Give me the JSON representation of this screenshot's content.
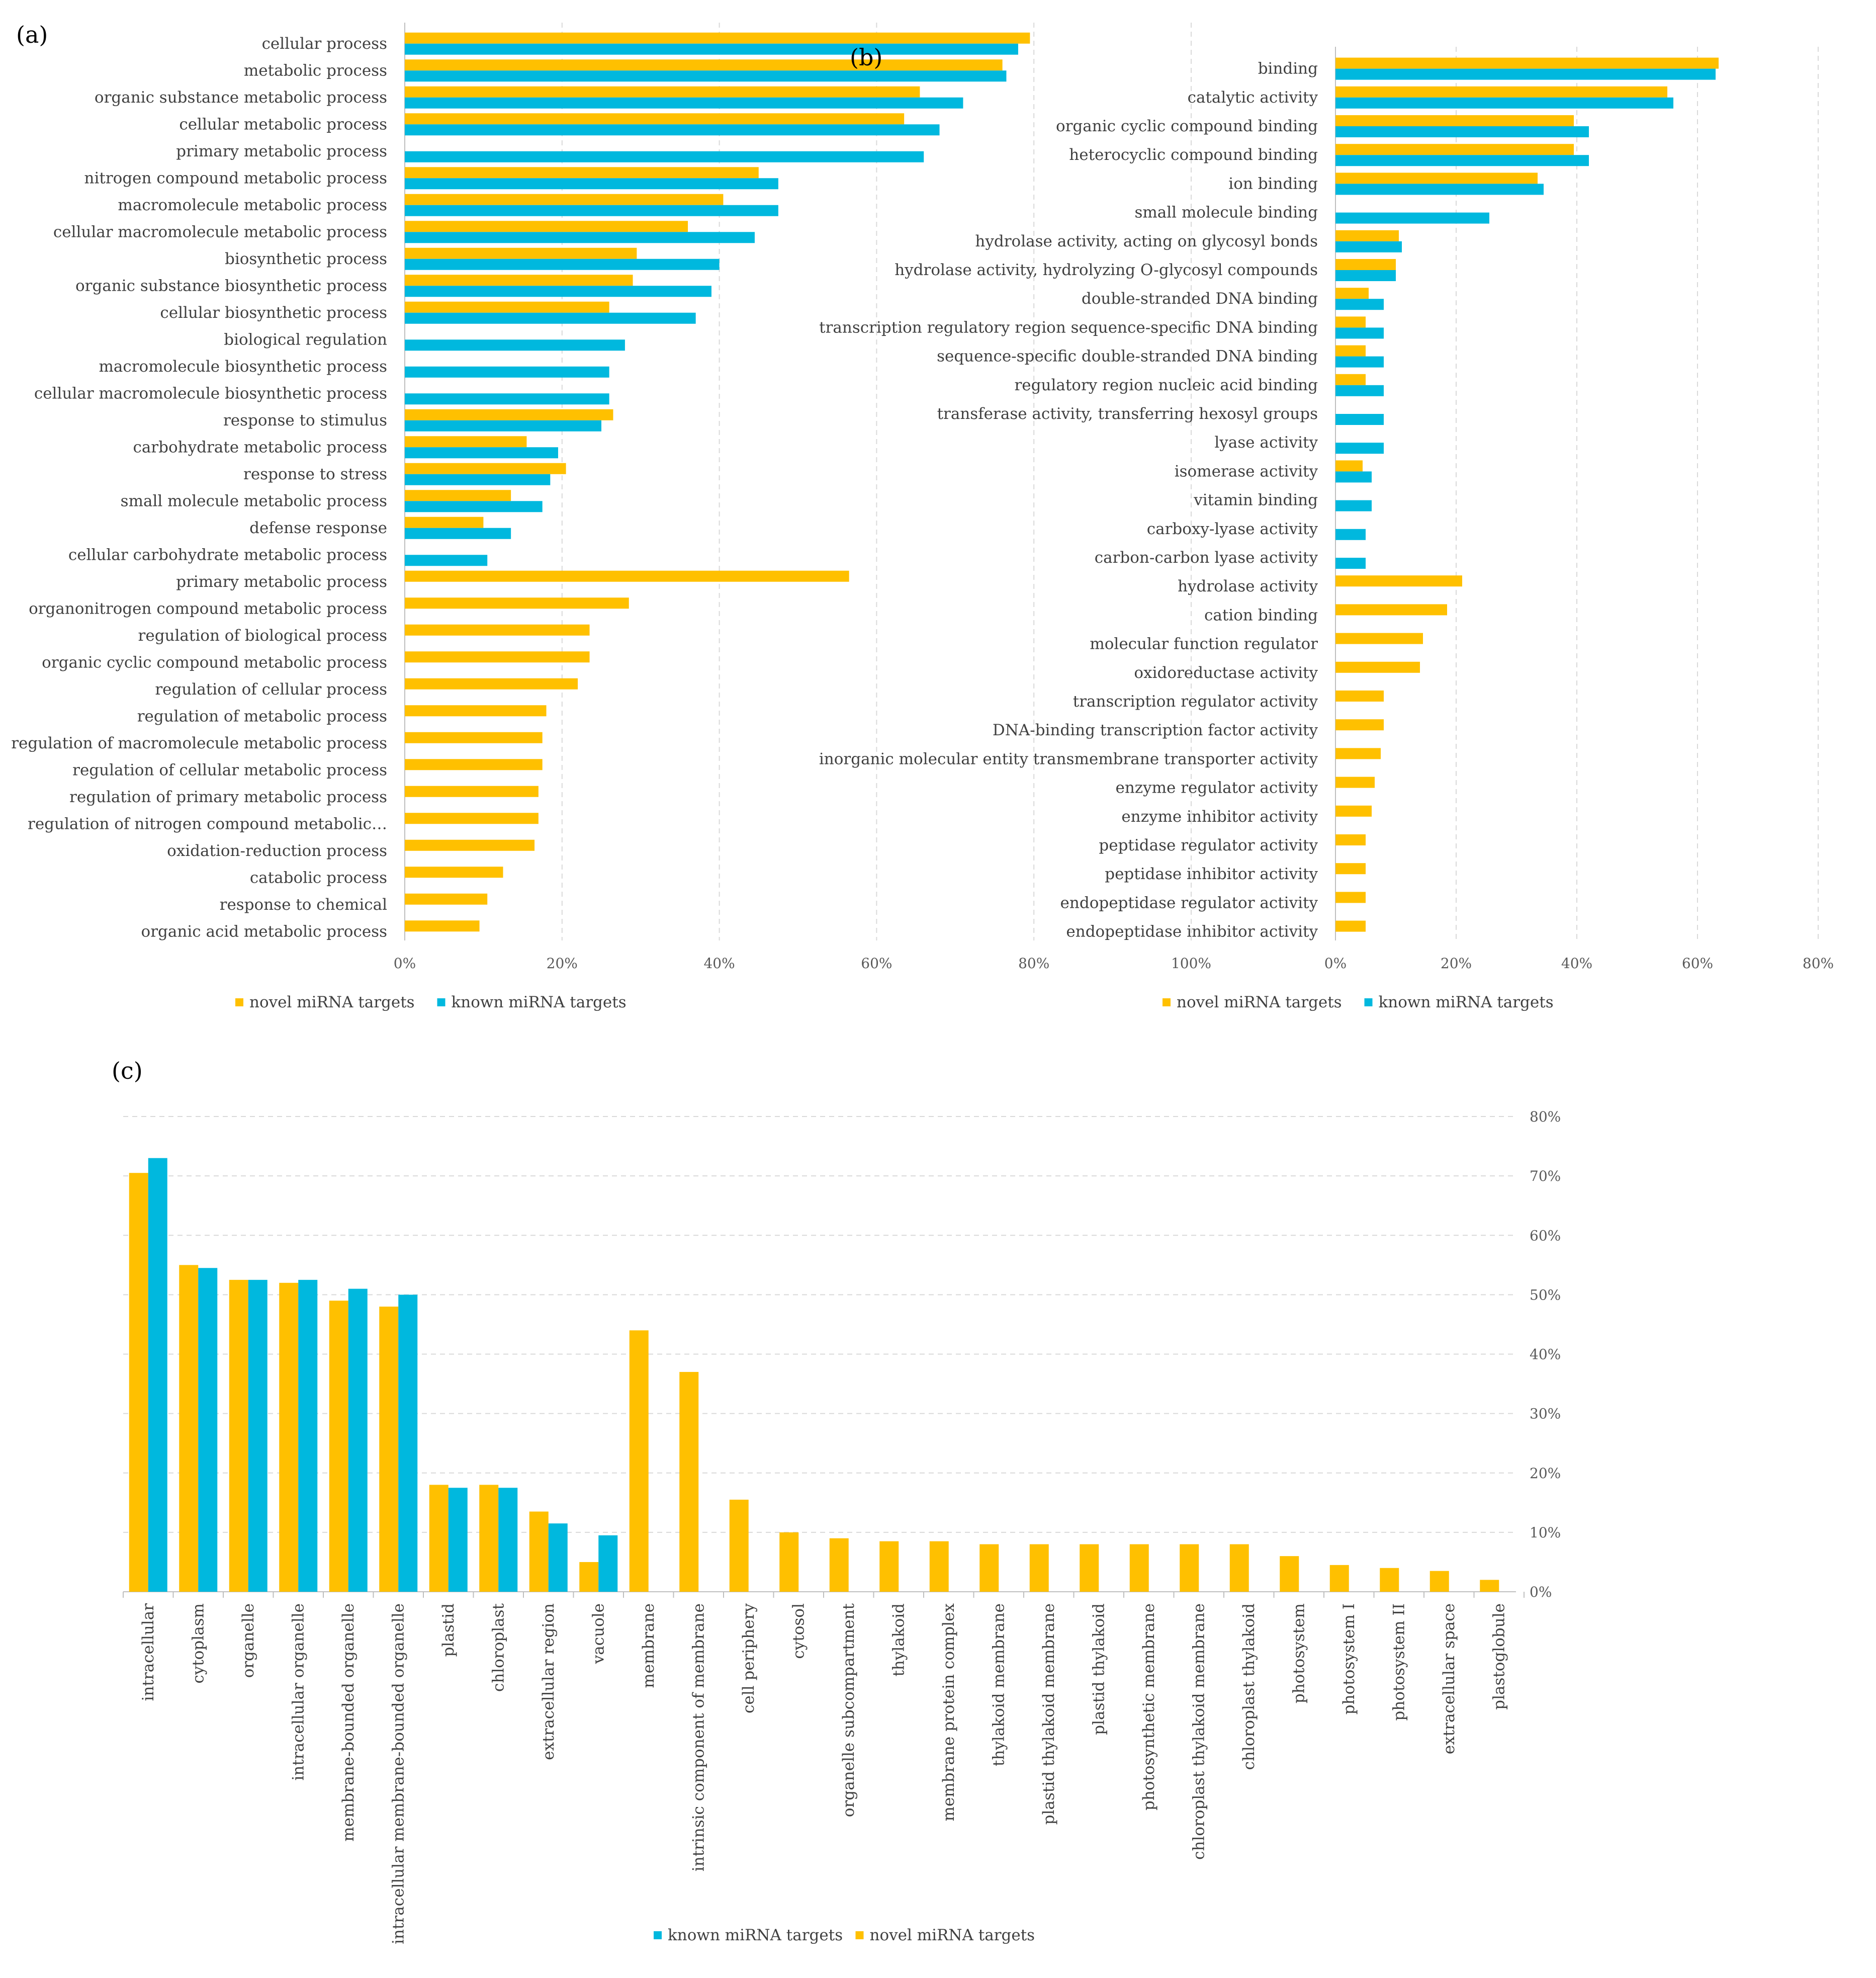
{
  "colors": {
    "novel": "#FFC000",
    "known": "#00B8DE",
    "grid": "#D9D9D9",
    "axis": "#BFBFBF"
  },
  "chart_data": [
    {
      "panel_label": "(a)",
      "type": "bar",
      "orientation": "horizontal",
      "xlim": [
        0,
        100
      ],
      "ticks": [
        "0%",
        "20%",
        "40%",
        "60%",
        "80%",
        "100%"
      ],
      "legend": [
        {
          "key": "novel",
          "label": "novel miRNA targets"
        },
        {
          "key": "known",
          "label": "known miRNA targets"
        }
      ],
      "categories": [
        "cellular process",
        "metabolic process",
        "organic substance metabolic process",
        "cellular metabolic process",
        "primary metabolic process",
        "nitrogen compound metabolic process",
        "macromolecule metabolic process",
        "cellular macromolecule metabolic process",
        "biosynthetic process",
        "organic substance biosynthetic process",
        "cellular biosynthetic process",
        "biological regulation",
        "macromolecule biosynthetic process",
        "cellular macromolecule biosynthetic process",
        "response to stimulus",
        "carbohydrate metabolic process",
        "response to stress",
        "small molecule metabolic process",
        "defense response",
        "cellular carbohydrate metabolic process",
        "primary metabolic process",
        "organonitrogen compound metabolic process",
        "regulation of biological process",
        "organic cyclic compound metabolic process",
        "regulation of cellular process",
        "regulation of metabolic process",
        "regulation of macromolecule metabolic process",
        "regulation of cellular metabolic process",
        "regulation of primary metabolic process",
        "regulation of nitrogen compound metabolic…",
        "oxidation-reduction process",
        "catabolic process",
        "response to chemical",
        "organic acid metabolic process"
      ],
      "series": [
        {
          "key": "novel",
          "values": [
            79.5,
            76,
            65.5,
            63.5,
            null,
            45,
            40.5,
            36,
            29.5,
            29,
            26,
            null,
            null,
            null,
            26.5,
            15.5,
            20.5,
            13.5,
            10,
            null,
            56.5,
            28.5,
            23.5,
            23.5,
            22,
            18,
            17.5,
            17.5,
            17,
            17,
            16.5,
            12.5,
            10.5,
            9.5
          ]
        },
        {
          "key": "known",
          "values": [
            78,
            76.5,
            71,
            68,
            66,
            47.5,
            47.5,
            44.5,
            40,
            39,
            37,
            28,
            26,
            26,
            25,
            19.5,
            18.5,
            17.5,
            13.5,
            10.5,
            null,
            null,
            null,
            null,
            null,
            null,
            null,
            null,
            null,
            null,
            null,
            null,
            null,
            null
          ]
        }
      ]
    },
    {
      "panel_label": "(b)",
      "type": "bar",
      "orientation": "horizontal",
      "xlim": [
        0,
        80
      ],
      "ticks": [
        "0%",
        "20%",
        "40%",
        "60%",
        "80%"
      ],
      "legend": [
        {
          "key": "novel",
          "label": "novel miRNA targets"
        },
        {
          "key": "known",
          "label": "known miRNA targets"
        }
      ],
      "categories": [
        "binding",
        "catalytic activity",
        "organic cyclic compound binding",
        "heterocyclic compound binding",
        "ion binding",
        "small molecule binding",
        "hydrolase activity, acting on glycosyl bonds",
        "hydrolase activity, hydrolyzing O-glycosyl compounds",
        "double-stranded DNA binding",
        "transcription regulatory region sequence-specific DNA binding",
        "sequence-specific double-stranded DNA binding",
        "regulatory region nucleic acid binding",
        "transferase activity, transferring hexosyl groups",
        "lyase activity",
        "isomerase activity",
        "vitamin binding",
        "carboxy-lyase activity",
        "carbon-carbon lyase activity",
        "hydrolase activity",
        "cation binding",
        "molecular function regulator",
        "oxidoreductase activity",
        "transcription regulator activity",
        "DNA-binding transcription factor activity",
        "inorganic molecular entity transmembrane transporter activity",
        "enzyme regulator activity",
        "enzyme inhibitor activity",
        "peptidase regulator activity",
        "peptidase inhibitor activity",
        "endopeptidase regulator activity",
        "endopeptidase inhibitor activity"
      ],
      "series": [
        {
          "key": "novel",
          "values": [
            63.5,
            55,
            39.5,
            39.5,
            33.5,
            null,
            10.5,
            10,
            5.5,
            5,
            5,
            5,
            null,
            null,
            4.5,
            null,
            null,
            null,
            21,
            18.5,
            14.5,
            14,
            8,
            8,
            7.5,
            6.5,
            6,
            5,
            5,
            5,
            5
          ]
        },
        {
          "key": "known",
          "values": [
            63,
            56,
            42,
            42,
            34.5,
            25.5,
            11,
            10,
            8,
            8,
            8,
            8,
            8,
            8,
            6,
            6,
            5,
            5,
            null,
            null,
            null,
            null,
            null,
            null,
            null,
            null,
            null,
            null,
            null,
            null,
            null
          ]
        }
      ]
    },
    {
      "panel_label": "(c)",
      "type": "bar",
      "orientation": "vertical",
      "ylim": [
        0,
        80
      ],
      "ticks": [
        "0%",
        "10%",
        "20%",
        "30%",
        "40%",
        "50%",
        "60%",
        "70%",
        "80%"
      ],
      "legend": [
        {
          "key": "known",
          "label": "known miRNA targets"
        },
        {
          "key": "novel",
          "label": "novel miRNA targets"
        }
      ],
      "categories": [
        "intracellular",
        "cytoplasm",
        "organelle",
        "intracellular organelle",
        "membrane-bounded organelle",
        "intracellular membrane-bounded organelle",
        "plastid",
        "chloroplast",
        "extracellular region",
        "vacuole",
        "membrane",
        "intrinsic component of membrane",
        "cell periphery",
        "cytosol",
        "organelle subcompartment",
        "thylakoid",
        "membrane protein complex",
        "thylakoid membrane",
        "plastid thylakoid membrane",
        "plastid thylakoid",
        "photosynthetic membrane",
        "chloroplast thylakoid membrane",
        "chloroplast thylakoid",
        "photosystem",
        "photosystem I",
        "photosystem II",
        "extracellular space",
        "plastoglobule"
      ],
      "series": [
        {
          "key": "novel",
          "values": [
            70.5,
            55,
            52.5,
            52,
            49,
            48,
            18,
            18,
            13.5,
            5,
            44,
            37,
            15.5,
            10,
            9,
            8.5,
            8.5,
            8,
            8,
            8,
            8,
            8,
            8,
            6,
            4.5,
            4,
            3.5,
            2
          ]
        },
        {
          "key": "known",
          "values": [
            73,
            54.5,
            52.5,
            52.5,
            51,
            50,
            17.5,
            17.5,
            11.5,
            9.5,
            null,
            null,
            null,
            null,
            null,
            null,
            null,
            null,
            null,
            null,
            null,
            null,
            null,
            null,
            null,
            null,
            null,
            null
          ]
        }
      ]
    }
  ]
}
